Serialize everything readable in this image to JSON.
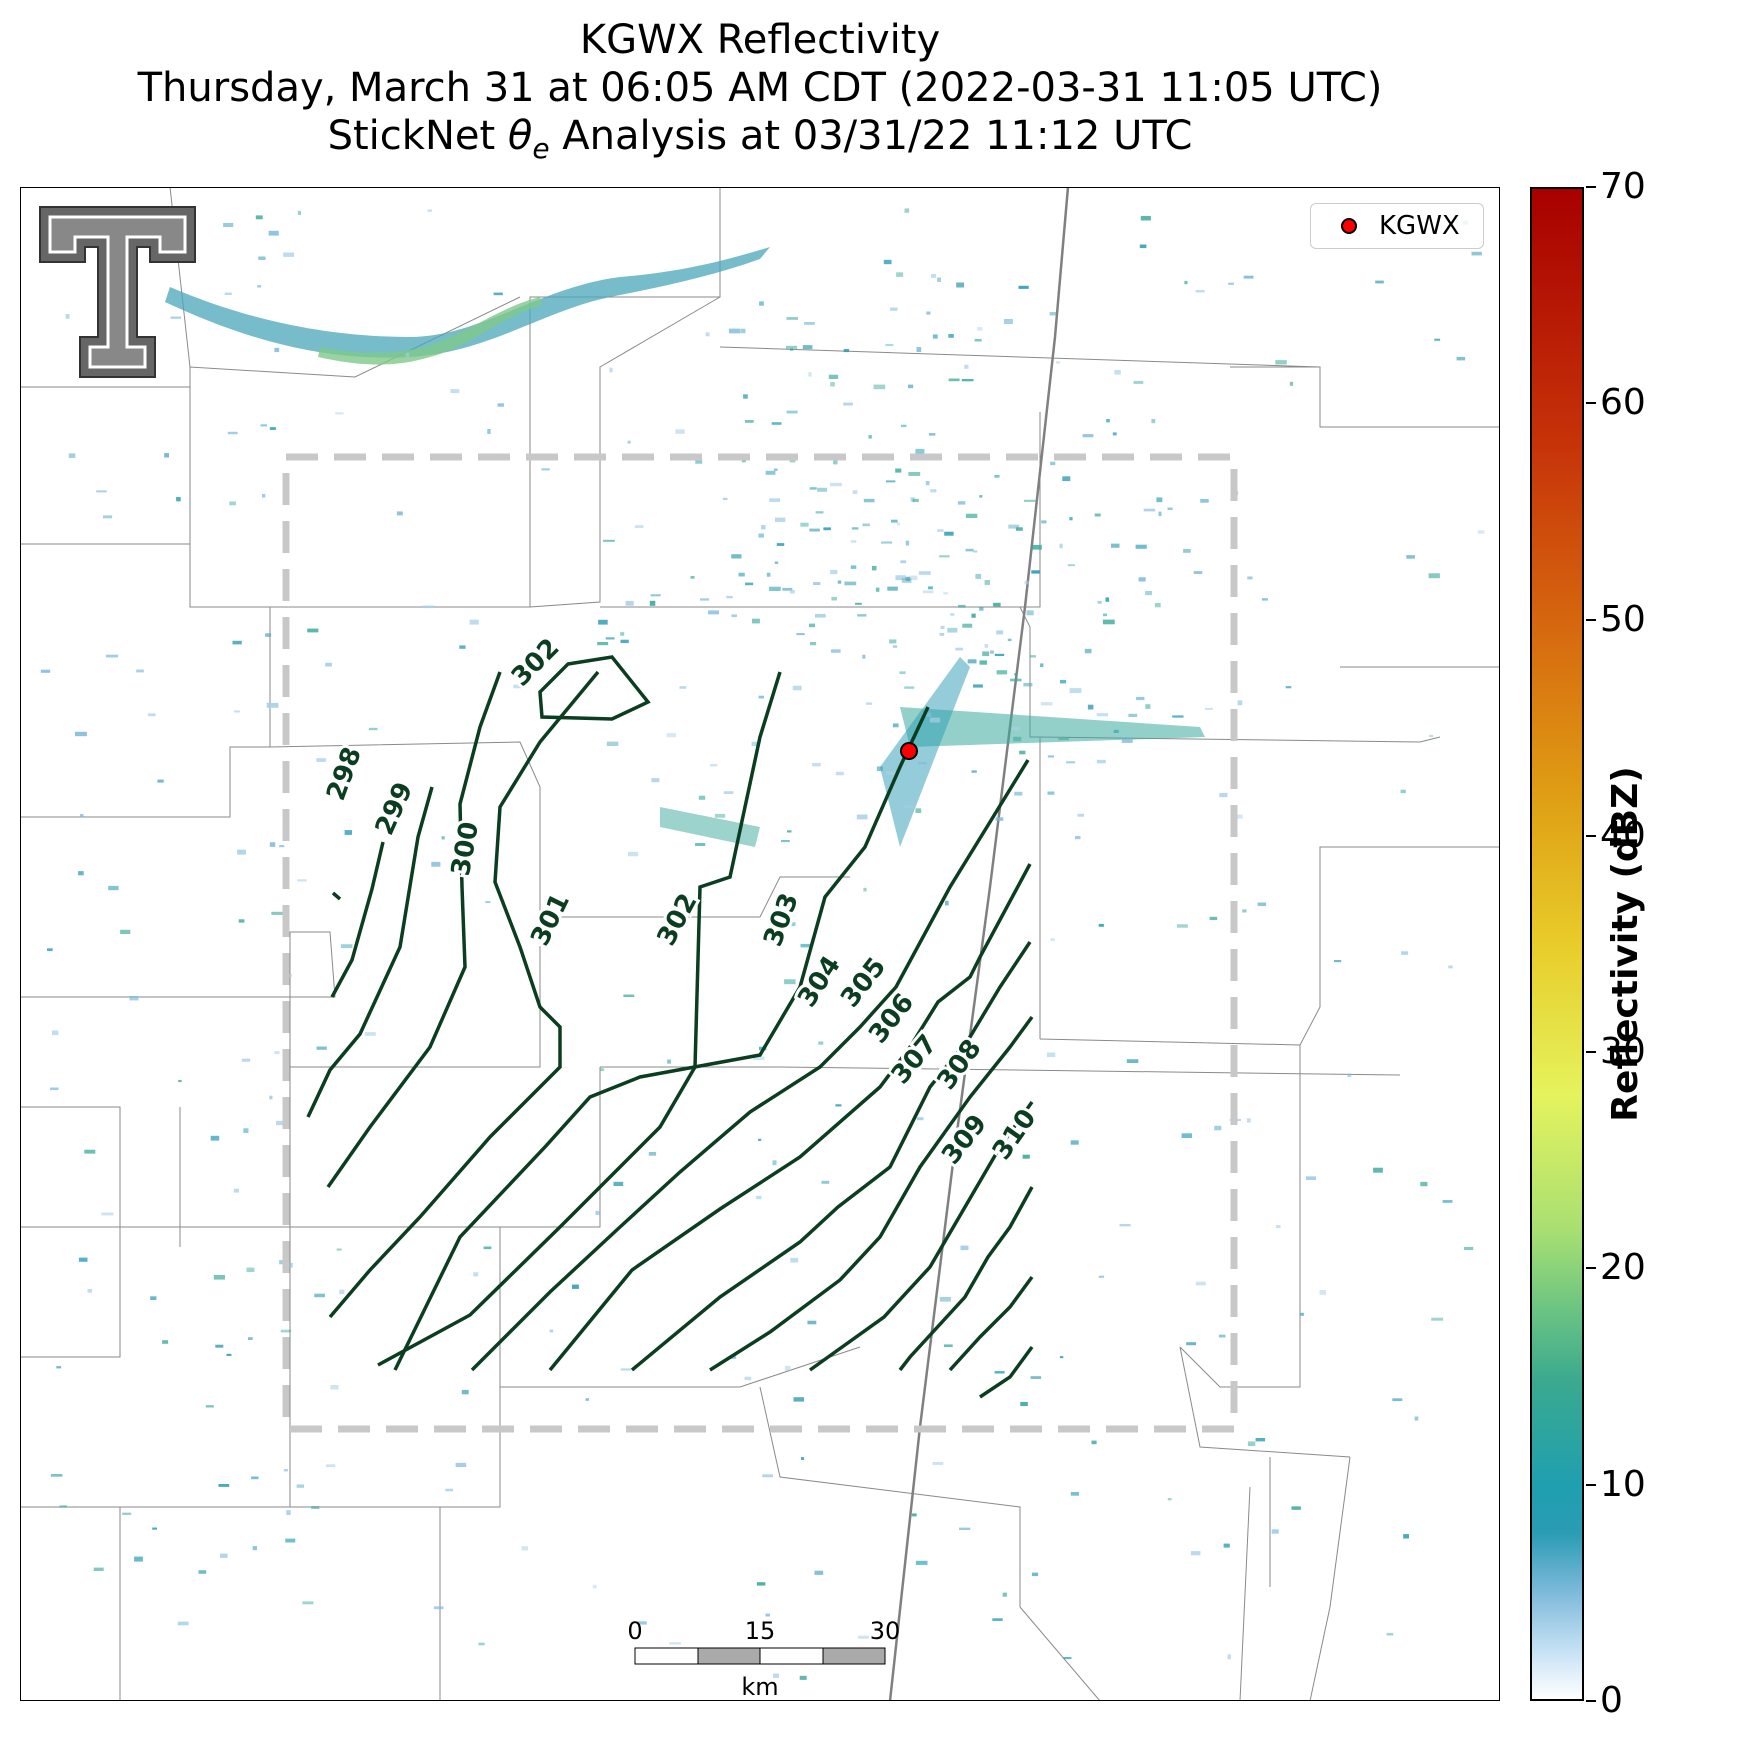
{
  "title": {
    "line1": "KGWX Reflectivity",
    "line2": "Thursday, March 31 at 06:05 AM CDT (2022-03-31 11:05 UTC)",
    "line3": "StickNet θe Analysis at 03/31/22 11:12 UTC"
  },
  "legend": {
    "label": "KGWX",
    "marker_color": "#ff0000"
  },
  "logo": {
    "icon": "texas-tech-double-t-logo"
  },
  "colorbar": {
    "label": "Reflectivity (dBZ)",
    "ticks": [
      "0",
      "10",
      "20",
      "30",
      "40",
      "50",
      "60",
      "70"
    ],
    "range": [
      0,
      70
    ]
  },
  "scalebar": {
    "ticks": [
      "0",
      "15",
      "30"
    ],
    "unit": "km"
  },
  "contour_color": "#0b3d20",
  "contour_labels": [
    "298",
    "299",
    "300",
    "301",
    "302",
    "302",
    "303",
    "304",
    "305",
    "306",
    "307",
    "308",
    "309",
    "310"
  ]
}
